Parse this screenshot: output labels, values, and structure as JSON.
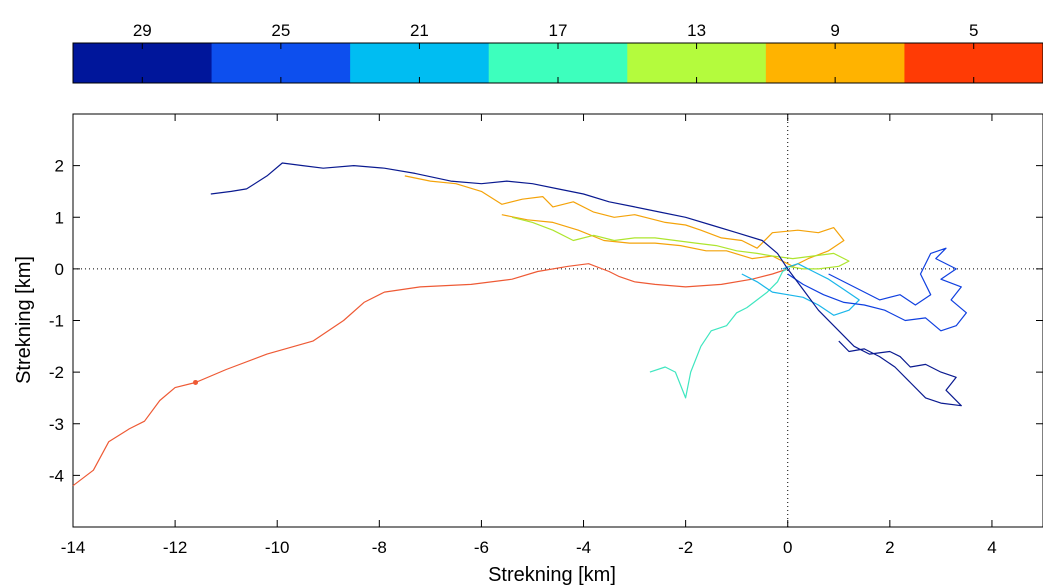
{
  "chart_data": {
    "type": "line",
    "xlabel": "Strekning [km]",
    "ylabel": "Strekning [km]",
    "xlim": [
      -14,
      5
    ],
    "ylim": [
      -5,
      3
    ],
    "x_ticks": [
      -14,
      -12,
      -10,
      -8,
      -6,
      -4,
      -2,
      0,
      2,
      4
    ],
    "y_ticks": [
      2,
      1,
      0,
      -1,
      -2,
      -3,
      -4
    ],
    "x_tick_labels": [
      "-14",
      "-12",
      "-10",
      "-8",
      "-6",
      "-4",
      "-2",
      "0",
      "2",
      "4"
    ],
    "y_tick_labels": [
      "2",
      "1",
      "0",
      "-1",
      "-2",
      "-3",
      "-4"
    ],
    "reference_lines": {
      "x": 0,
      "y": 0,
      "style": "dotted"
    },
    "colorbar": {
      "tick_labels": [
        "29",
        "25",
        "21",
        "17",
        "13",
        "9",
        "5"
      ],
      "colors": [
        "#00169b",
        "#0d4fee",
        "#00bdf2",
        "#3dffbd",
        "#b4fb3d",
        "#ffb300",
        "#ff3b05"
      ]
    },
    "series": [
      {
        "color": "#ee5a35",
        "points": [
          [
            -14,
            -4.2
          ],
          [
            -13.6,
            -3.9
          ],
          [
            -13.3,
            -3.35
          ],
          [
            -12.9,
            -3.1
          ],
          [
            -12.6,
            -2.95
          ],
          [
            -12.3,
            -2.55
          ],
          [
            -12.0,
            -2.3
          ],
          [
            -11.6,
            -2.2
          ],
          [
            -11.0,
            -1.95
          ],
          [
            -10.2,
            -1.65
          ],
          [
            -9.3,
            -1.4
          ],
          [
            -8.7,
            -1.0
          ],
          [
            -8.3,
            -0.65
          ],
          [
            -7.9,
            -0.45
          ],
          [
            -7.2,
            -0.35
          ],
          [
            -6.2,
            -0.3
          ],
          [
            -5.4,
            -0.2
          ],
          [
            -4.9,
            -0.05
          ],
          [
            -4.3,
            0.05
          ],
          [
            -3.9,
            0.1
          ],
          [
            -3.5,
            -0.05
          ],
          [
            -3.3,
            -0.15
          ],
          [
            -3.0,
            -0.25
          ],
          [
            -2.6,
            -0.3
          ],
          [
            -2.0,
            -0.35
          ],
          [
            -1.3,
            -0.3
          ],
          [
            -0.7,
            -0.2
          ],
          [
            -0.3,
            -0.1
          ],
          [
            0,
            0
          ]
        ],
        "marker": [
          -11.6,
          -2.2
        ]
      },
      {
        "color": "#f4a30a",
        "points": [
          [
            -7.5,
            1.8
          ],
          [
            -7.0,
            1.7
          ],
          [
            -6.5,
            1.65
          ],
          [
            -6.0,
            1.5
          ],
          [
            -5.6,
            1.25
          ],
          [
            -5.2,
            1.35
          ],
          [
            -4.8,
            1.4
          ],
          [
            -4.6,
            1.2
          ],
          [
            -4.2,
            1.3
          ],
          [
            -3.8,
            1.1
          ],
          [
            -3.4,
            1.0
          ],
          [
            -3.0,
            1.05
          ],
          [
            -2.6,
            0.95
          ],
          [
            -2.4,
            0.9
          ],
          [
            -2.0,
            0.85
          ],
          [
            -1.7,
            0.75
          ],
          [
            -1.3,
            0.6
          ],
          [
            -0.9,
            0.55
          ],
          [
            -0.6,
            0.4
          ],
          [
            -0.3,
            0.7
          ],
          [
            0.2,
            0.75
          ],
          [
            0.6,
            0.7
          ],
          [
            0.9,
            0.8
          ],
          [
            1.1,
            0.55
          ],
          [
            0.8,
            0.35
          ],
          [
            0.4,
            0.2
          ],
          [
            0.1,
            0.05
          ],
          [
            -0.3,
            0.25
          ],
          [
            -0.7,
            0.2
          ],
          [
            -1.2,
            0.35
          ],
          [
            -1.6,
            0.35
          ],
          [
            -2.1,
            0.45
          ],
          [
            -2.6,
            0.5
          ],
          [
            -3.1,
            0.5
          ],
          [
            -3.6,
            0.55
          ],
          [
            -4.1,
            0.75
          ],
          [
            -4.6,
            0.9
          ],
          [
            -5.1,
            0.95
          ],
          [
            -5.6,
            1.05
          ]
        ]
      },
      {
        "color": "#aee52e",
        "points": [
          [
            -5.4,
            1.0
          ],
          [
            -5.0,
            0.9
          ],
          [
            -4.6,
            0.75
          ],
          [
            -4.2,
            0.55
          ],
          [
            -3.8,
            0.65
          ],
          [
            -3.4,
            0.55
          ],
          [
            -3.0,
            0.6
          ],
          [
            -2.6,
            0.6
          ],
          [
            -2.2,
            0.55
          ],
          [
            -1.8,
            0.5
          ],
          [
            -1.4,
            0.45
          ],
          [
            -1.0,
            0.35
          ],
          [
            -0.6,
            0.3
          ],
          [
            -0.3,
            0.25
          ],
          [
            0.1,
            0.2
          ],
          [
            0.5,
            0.25
          ],
          [
            0.9,
            0.3
          ],
          [
            1.2,
            0.15
          ],
          [
            1.0,
            0.05
          ],
          [
            0.6,
            0.0
          ],
          [
            0.3,
            0.0
          ],
          [
            0.0,
            0.05
          ]
        ]
      },
      {
        "color": "#3fe6c0",
        "points": [
          [
            -2.7,
            -2.0
          ],
          [
            -2.4,
            -1.9
          ],
          [
            -2.2,
            -2.0
          ],
          [
            -2.0,
            -2.5
          ],
          [
            -1.9,
            -2.0
          ],
          [
            -1.7,
            -1.5
          ],
          [
            -1.5,
            -1.2
          ],
          [
            -1.2,
            -1.1
          ],
          [
            -1.0,
            -0.85
          ],
          [
            -0.8,
            -0.75
          ],
          [
            -0.6,
            -0.6
          ],
          [
            -0.4,
            -0.45
          ],
          [
            -0.2,
            -0.25
          ],
          [
            -0.1,
            -0.05
          ],
          [
            0.0,
            0.0
          ]
        ]
      },
      {
        "color": "#1ab6ea",
        "points": [
          [
            -0.9,
            -0.1
          ],
          [
            -0.6,
            -0.25
          ],
          [
            -0.3,
            -0.45
          ],
          [
            0.0,
            -0.5
          ],
          [
            0.3,
            -0.55
          ],
          [
            0.6,
            -0.7
          ],
          [
            0.9,
            -0.9
          ],
          [
            1.2,
            -0.8
          ],
          [
            1.4,
            -0.6
          ],
          [
            1.1,
            -0.4
          ],
          [
            0.8,
            -0.2
          ],
          [
            0.5,
            -0.05
          ],
          [
            0.2,
            0.1
          ],
          [
            -0.1,
            0.0
          ]
        ]
      },
      {
        "color": "#1040e0",
        "points": [
          [
            0.0,
            -0.1
          ],
          [
            0.3,
            -0.3
          ],
          [
            0.7,
            -0.5
          ],
          [
            1.1,
            -0.65
          ],
          [
            1.5,
            -0.7
          ],
          [
            1.9,
            -0.8
          ],
          [
            2.3,
            -1.0
          ],
          [
            2.7,
            -0.95
          ],
          [
            3.0,
            -1.2
          ],
          [
            3.3,
            -1.1
          ],
          [
            3.5,
            -0.85
          ],
          [
            3.2,
            -0.6
          ],
          [
            3.4,
            -0.35
          ],
          [
            3.0,
            -0.2
          ],
          [
            3.3,
            0.0
          ],
          [
            2.9,
            0.2
          ],
          [
            3.1,
            0.4
          ],
          [
            2.8,
            0.3
          ],
          [
            2.6,
            -0.1
          ],
          [
            2.8,
            -0.5
          ],
          [
            2.5,
            -0.7
          ],
          [
            2.2,
            -0.5
          ],
          [
            1.8,
            -0.6
          ],
          [
            1.4,
            -0.4
          ],
          [
            0.8,
            -0.1
          ]
        ]
      },
      {
        "color": "#0a1a90",
        "points": [
          [
            -11.3,
            1.45
          ],
          [
            -10.9,
            1.5
          ],
          [
            -10.6,
            1.55
          ],
          [
            -10.2,
            1.8
          ],
          [
            -9.9,
            2.05
          ],
          [
            -9.5,
            2.0
          ],
          [
            -9.1,
            1.95
          ],
          [
            -8.5,
            2.0
          ],
          [
            -7.9,
            1.95
          ],
          [
            -7.3,
            1.85
          ],
          [
            -6.6,
            1.7
          ],
          [
            -6.0,
            1.65
          ],
          [
            -5.5,
            1.7
          ],
          [
            -5.0,
            1.65
          ],
          [
            -4.5,
            1.55
          ],
          [
            -4.0,
            1.45
          ],
          [
            -3.5,
            1.3
          ],
          [
            -3.0,
            1.2
          ],
          [
            -2.5,
            1.1
          ],
          [
            -2.0,
            1.0
          ],
          [
            -1.5,
            0.85
          ],
          [
            -1.0,
            0.7
          ],
          [
            -0.5,
            0.55
          ],
          [
            -0.2,
            0.3
          ],
          [
            0.0,
            0.0
          ],
          [
            0.3,
            -0.4
          ],
          [
            0.6,
            -0.8
          ],
          [
            1.0,
            -1.2
          ],
          [
            1.3,
            -1.5
          ],
          [
            1.6,
            -1.65
          ],
          [
            2.0,
            -1.6
          ],
          [
            2.2,
            -1.7
          ],
          [
            2.4,
            -1.9
          ],
          [
            2.7,
            -1.85
          ],
          [
            3.0,
            -2.0
          ],
          [
            3.3,
            -2.1
          ],
          [
            3.1,
            -2.35
          ],
          [
            3.4,
            -2.65
          ],
          [
            3.0,
            -2.6
          ],
          [
            2.7,
            -2.5
          ],
          [
            2.4,
            -2.2
          ],
          [
            2.1,
            -1.9
          ],
          [
            1.8,
            -1.7
          ],
          [
            1.5,
            -1.55
          ],
          [
            1.2,
            -1.6
          ],
          [
            1.0,
            -1.4
          ]
        ]
      }
    ]
  }
}
